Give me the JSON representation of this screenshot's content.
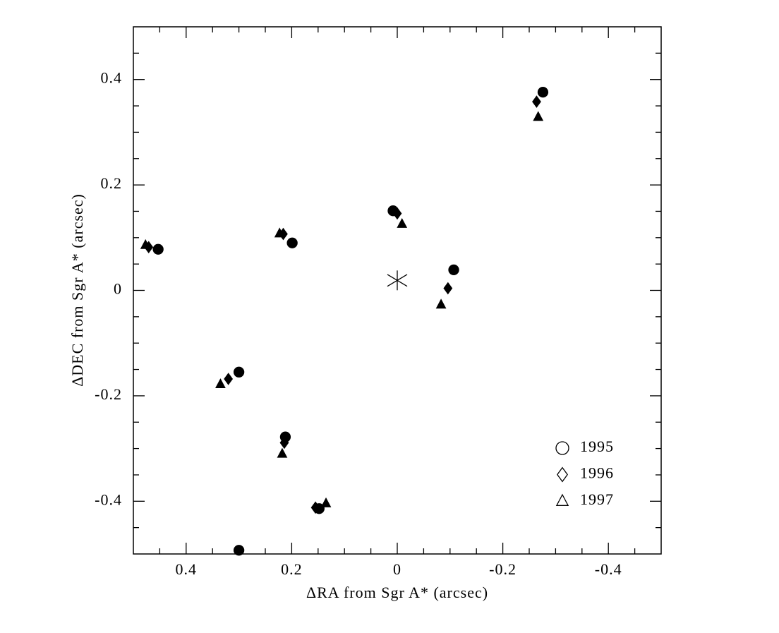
{
  "chart_data": {
    "type": "scatter",
    "x_label": "ΔRA from Sgr A* (arcsec)",
    "y_label": "ΔDEC from Sgr A* (arcsec)",
    "xlim": [
      0.5,
      -0.5
    ],
    "ylim": [
      -0.5,
      0.5
    ],
    "xticks": [
      0.4,
      0.2,
      0,
      -0.2,
      -0.4
    ],
    "yticks": [
      -0.4,
      -0.2,
      0,
      0.2,
      0.4
    ],
    "xminorticks": [
      0.45,
      0.35,
      0.3,
      0.25,
      0.15,
      0.1,
      0.05,
      -0.05,
      -0.1,
      -0.15,
      -0.25,
      -0.3,
      -0.35,
      -0.45
    ],
    "yminorticks": [
      -0.45,
      -0.35,
      -0.3,
      -0.25,
      -0.15,
      -0.1,
      -0.05,
      0.05,
      0.1,
      0.15,
      0.25,
      0.3,
      0.35,
      0.45
    ],
    "reference_point": {
      "x": 0,
      "y": 0.019
    },
    "legend": "lower right",
    "series": [
      {
        "name": "1995",
        "marker": "circle",
        "color": "#000000",
        "x": [
          -0.276,
          0.008,
          -0.107,
          0.199,
          0.453,
          0.3,
          0.212,
          0.148,
          0.3
        ],
        "y": [
          0.376,
          0.151,
          0.039,
          0.09,
          0.078,
          -0.155,
          -0.278,
          -0.414,
          -0.493
        ]
      },
      {
        "name": "1996",
        "marker": "diamond",
        "color": "#000000",
        "x": [
          -0.264,
          0.0,
          -0.096,
          0.216,
          0.471,
          0.32,
          0.214,
          0.155,
          null
        ],
        "y": [
          0.358,
          0.146,
          0.004,
          0.107,
          0.082,
          -0.168,
          -0.289,
          -0.412,
          null
        ]
      },
      {
        "name": "1997",
        "marker": "triangle",
        "color": "#000000",
        "x": [
          -0.267,
          -0.009,
          -0.083,
          0.223,
          0.477,
          0.335,
          0.218,
          0.135,
          null
        ],
        "y": [
          0.329,
          0.126,
          -0.027,
          0.108,
          0.086,
          -0.178,
          -0.31,
          -0.404,
          null
        ]
      }
    ]
  }
}
